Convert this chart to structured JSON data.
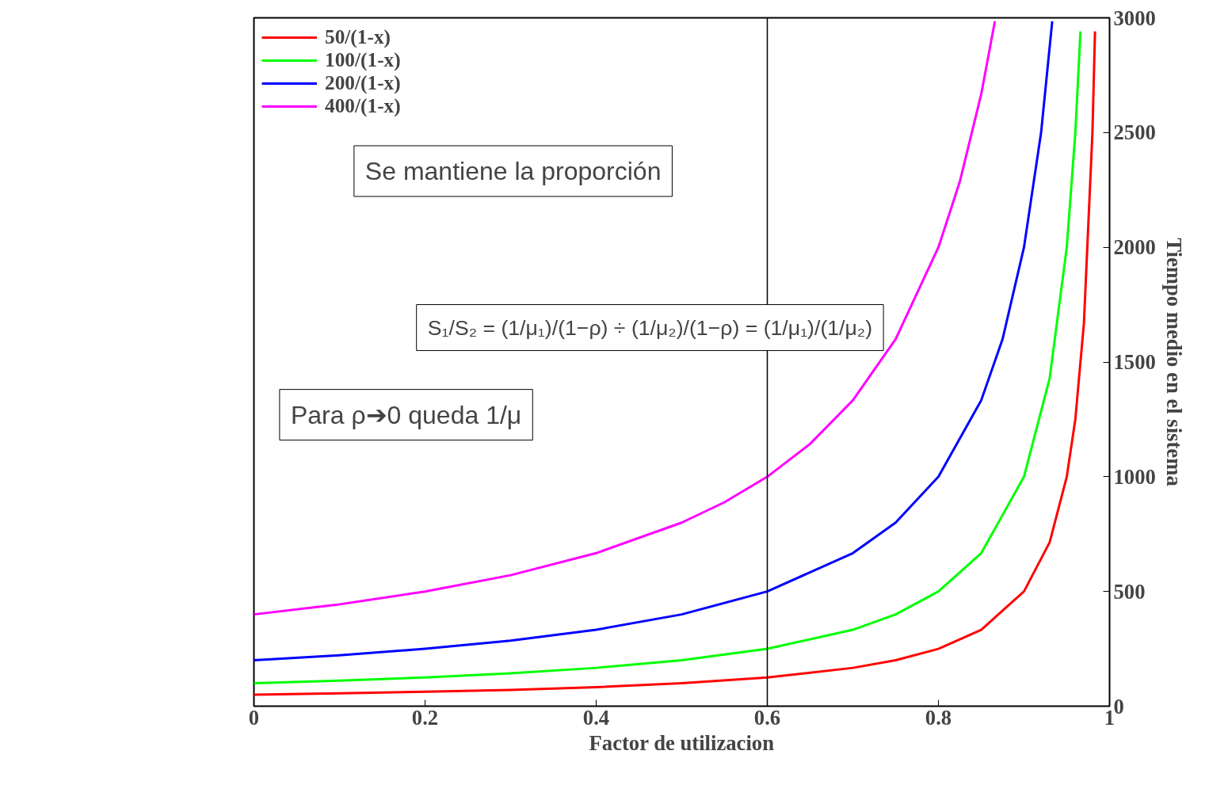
{
  "chart_data": {
    "type": "line",
    "xlabel": "Factor de utilizacion",
    "ylabel": "Tiempo medio en el sistema",
    "xlim": [
      0,
      1
    ],
    "ylim": [
      0,
      3000
    ],
    "xticks": [
      0,
      0.2,
      0.4,
      0.6,
      0.8,
      1
    ],
    "yticks": [
      0,
      500,
      1000,
      1500,
      2000,
      2500,
      3000
    ],
    "grid": false,
    "legend": "top left",
    "series": [
      {
        "name": "50/(1-x)",
        "color": "#ff0000",
        "x": [
          0,
          0.1,
          0.2,
          0.3,
          0.4,
          0.5,
          0.6,
          0.7,
          0.75,
          0.8,
          0.85,
          0.9,
          0.93,
          0.95,
          0.96,
          0.97,
          0.98,
          0.983
        ],
        "values": [
          50,
          56,
          63,
          71,
          83,
          100,
          125,
          167,
          200,
          250,
          333,
          500,
          714,
          1000,
          1250,
          1667,
          2500,
          2941
        ]
      },
      {
        "name": "100/(1-x)",
        "color": "#00ff00",
        "x": [
          0,
          0.1,
          0.2,
          0.3,
          0.4,
          0.5,
          0.6,
          0.7,
          0.75,
          0.8,
          0.85,
          0.9,
          0.93,
          0.95,
          0.96,
          0.966
        ],
        "values": [
          100,
          111,
          125,
          143,
          167,
          200,
          250,
          333,
          400,
          500,
          667,
          1000,
          1429,
          2000,
          2500,
          2941
        ]
      },
      {
        "name": "200/(1-x)",
        "color": "#0000ff",
        "x": [
          0,
          0.1,
          0.2,
          0.3,
          0.4,
          0.5,
          0.6,
          0.7,
          0.75,
          0.8,
          0.85,
          0.875,
          0.9,
          0.92,
          0.933
        ],
        "values": [
          200,
          222,
          250,
          286,
          333,
          400,
          500,
          667,
          800,
          1000,
          1333,
          1600,
          2000,
          2500,
          2985
        ]
      },
      {
        "name": "400/(1-x)",
        "color": "#ff00ff",
        "x": [
          0,
          0.1,
          0.2,
          0.3,
          0.4,
          0.5,
          0.55,
          0.6,
          0.65,
          0.7,
          0.75,
          0.8,
          0.825,
          0.85,
          0.866
        ],
        "values": [
          400,
          444,
          500,
          571,
          667,
          800,
          889,
          1000,
          1143,
          1333,
          1600,
          2000,
          2286,
          2667,
          2985
        ]
      }
    ],
    "ref_lines": [
      {
        "axis": "x",
        "value": 0.6,
        "color": "#000000"
      }
    ],
    "annotations": [
      "Se mantiene la proporción",
      "S₁/S₂ = (1/μ₁)/(1−ρ) ÷ (1/μ₂)/(1−ρ) = (1/μ₁)/(1/μ₂)",
      "Para ρ➔0 queda 1/μ"
    ]
  }
}
